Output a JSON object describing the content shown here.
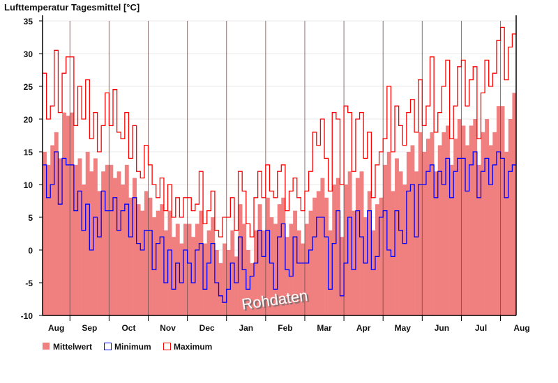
{
  "chart_data": {
    "type": "bar",
    "title": "Lufttemperatur Tagesmittel [°C]",
    "xlabel": "",
    "ylabel": "",
    "ylim": [
      -10,
      35
    ],
    "yticks": [
      -10,
      -5,
      0,
      5,
      10,
      15,
      20,
      25,
      30,
      35
    ],
    "grid": true,
    "month_labels": [
      "Aug",
      "Sep",
      "Oct",
      "Nov",
      "Dec",
      "Jan",
      "Feb",
      "Mar",
      "Apr",
      "May",
      "Jun",
      "Jul",
      "Aug"
    ],
    "points_per_month": [
      7,
      10,
      10,
      10,
      10,
      10,
      10,
      10,
      10,
      10,
      10,
      10,
      4
    ],
    "legend_position": "bottom-left",
    "watermark": "Rohdaten",
    "series": [
      {
        "name": "Mittelwert",
        "kind": "bar",
        "color": "#f08080",
        "values": [
          15,
          13,
          16,
          18,
          14,
          21,
          20.5,
          21,
          13,
          14,
          10,
          15,
          12,
          14,
          9,
          12,
          13,
          13,
          11,
          12,
          10,
          13,
          8,
          11,
          7,
          6,
          9,
          8,
          5,
          6,
          7,
          3,
          6,
          2,
          4,
          1,
          4,
          4,
          2,
          4,
          6,
          1,
          3,
          5,
          0,
          -2,
          1,
          0,
          3,
          -1,
          7,
          4,
          0,
          -2,
          3,
          7,
          3,
          8,
          5,
          4,
          7,
          8,
          2,
          4,
          6,
          3,
          1,
          4,
          6,
          8,
          9,
          11,
          8,
          3,
          10,
          11,
          2,
          10,
          12,
          6,
          11,
          12,
          5,
          9,
          3,
          7,
          8,
          13,
          15,
          9,
          14,
          12,
          10,
          15,
          16,
          12,
          18,
          15,
          17,
          18,
          12,
          16,
          18,
          19,
          13,
          17,
          20,
          19,
          16,
          19,
          20,
          13,
          18,
          20,
          16,
          18,
          22,
          22,
          15,
          20,
          24
        ]
      },
      {
        "name": "Minimum",
        "kind": "step",
        "color": "#0000ff",
        "values": [
          13,
          8,
          10,
          15,
          7,
          14,
          13,
          13,
          6,
          9,
          3,
          7,
          0,
          5,
          2,
          9,
          6,
          6,
          8,
          3,
          6,
          7,
          2,
          8,
          1,
          0,
          3,
          3,
          -3,
          1,
          2,
          -5,
          0,
          -6,
          -2,
          -5,
          0,
          -2,
          -5,
          0,
          1,
          -6,
          -2,
          1,
          -5,
          -7,
          -8,
          -6,
          -2,
          -5,
          2,
          -3,
          -6,
          -4,
          -2,
          3,
          -1,
          3,
          -2,
          -6,
          2,
          4,
          -3,
          -4,
          2,
          -2,
          -2,
          -2,
          0,
          2,
          5,
          5,
          2,
          -6,
          1,
          6,
          -7,
          -2,
          5,
          -3,
          6,
          2,
          -2,
          6,
          -3,
          -1,
          5,
          6,
          0,
          -1,
          6,
          3,
          1,
          9,
          10,
          2,
          10,
          10,
          12,
          13,
          8,
          12,
          10,
          14,
          8,
          12,
          14,
          14,
          9,
          13,
          15,
          8,
          12,
          14,
          10,
          13,
          15,
          14,
          8,
          12,
          13
        ]
      },
      {
        "name": "Maximum",
        "kind": "step",
        "color": "#ff0000",
        "values": [
          27,
          20,
          22,
          30.5,
          21,
          27,
          29.5,
          29.5,
          19,
          25,
          20,
          26,
          17,
          21,
          15,
          19,
          24,
          19,
          24.5,
          18,
          17,
          21,
          14,
          19,
          12,
          11,
          16,
          13,
          10,
          8,
          11,
          6,
          10,
          5,
          8,
          5,
          8,
          8,
          6,
          7,
          12,
          4,
          6,
          9,
          3,
          2,
          5,
          5,
          8,
          3,
          12,
          9,
          4,
          2,
          8,
          12,
          8,
          13,
          9,
          8,
          12,
          13,
          6,
          9,
          11,
          8,
          6,
          9,
          12,
          18,
          16,
          20,
          14,
          9,
          21,
          20,
          10,
          22,
          21,
          12,
          20,
          21,
          14,
          18,
          8,
          13,
          15,
          17,
          25,
          15,
          22,
          19,
          16,
          21,
          23,
          18,
          26,
          19,
          22,
          29.5,
          18,
          21,
          25,
          29,
          17,
          22,
          28,
          29,
          22,
          26,
          28,
          17,
          24,
          29,
          25,
          27,
          32,
          34,
          26,
          31,
          33
        ]
      }
    ]
  }
}
